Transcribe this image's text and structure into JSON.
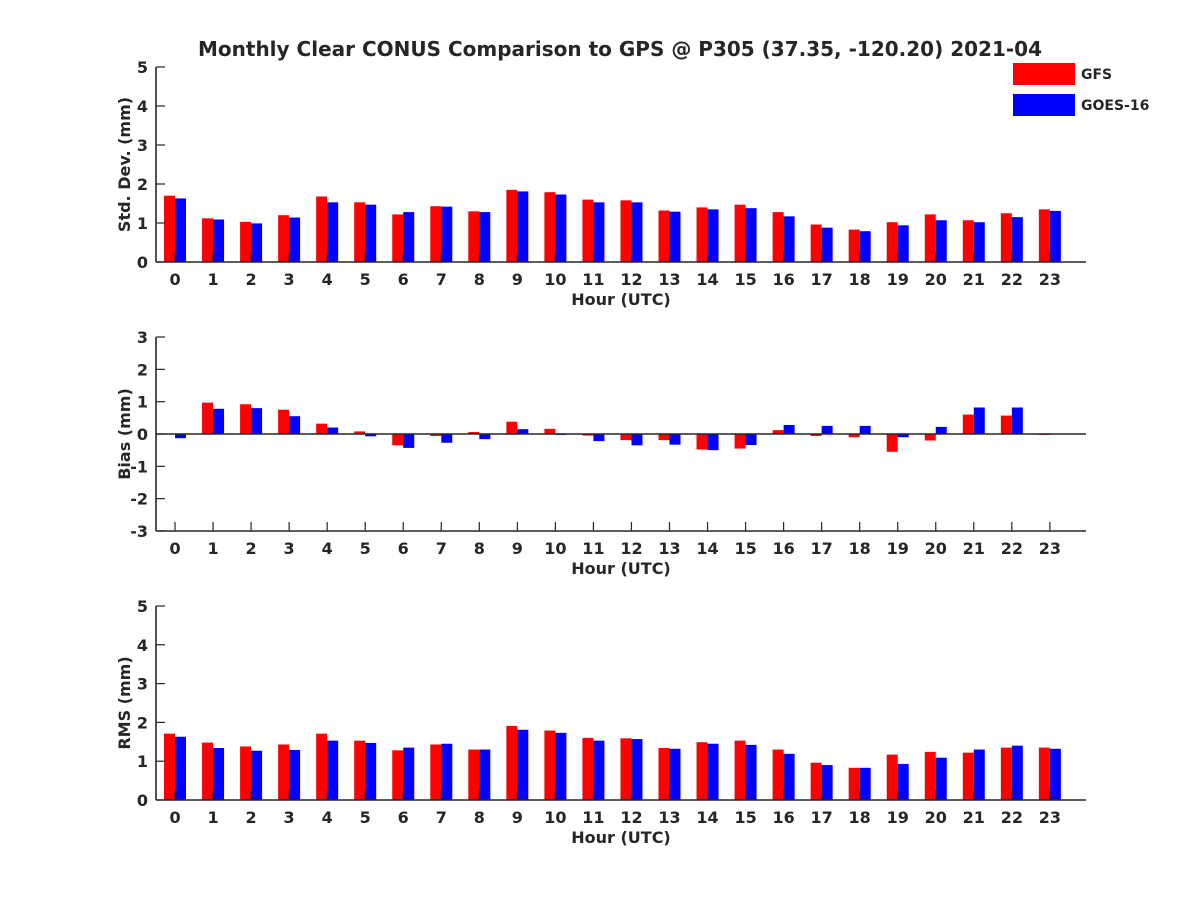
{
  "title": "Monthly Clear CONUS Comparison to GPS @ P305 (37.35, -120.20) 2021-04",
  "legend": {
    "placement": "top-right",
    "entries": [
      {
        "name": "GFS",
        "color": "#ff0000"
      },
      {
        "name": "GOES-16",
        "color": "#0000ff"
      }
    ]
  },
  "chart_data": [
    {
      "type": "bar",
      "ylabel": "Std. Dev. (mm)",
      "xlabel": "Hour (UTC)",
      "ylim": [
        0,
        5
      ],
      "yticks": [
        "0",
        "1",
        "2",
        "3",
        "4",
        "5"
      ],
      "categories": [
        "0",
        "1",
        "2",
        "3",
        "4",
        "5",
        "6",
        "7",
        "8",
        "9",
        "10",
        "11",
        "12",
        "13",
        "14",
        "15",
        "16",
        "17",
        "18",
        "19",
        "20",
        "21",
        "22",
        "23"
      ],
      "series": [
        {
          "name": "GFS",
          "color": "#ff0000",
          "values": [
            1.7,
            1.12,
            1.03,
            1.2,
            1.68,
            1.53,
            1.22,
            1.43,
            1.3,
            1.85,
            1.79,
            1.6,
            1.58,
            1.32,
            1.4,
            1.47,
            1.28,
            0.96,
            0.83,
            1.02,
            1.22,
            1.07,
            1.25,
            1.35
          ]
        },
        {
          "name": "GOES-16",
          "color": "#0000ff",
          "values": [
            1.63,
            1.09,
            0.99,
            1.14,
            1.53,
            1.47,
            1.28,
            1.42,
            1.28,
            1.81,
            1.73,
            1.53,
            1.53,
            1.29,
            1.35,
            1.38,
            1.17,
            0.88,
            0.79,
            0.94,
            1.07,
            1.02,
            1.15,
            1.31
          ]
        }
      ]
    },
    {
      "type": "bar",
      "ylabel": "Bias (mm)",
      "xlabel": "Hour (UTC)",
      "ylim": [
        -3,
        3
      ],
      "yticks": [
        "-3",
        "-2",
        "-1",
        "0",
        "1",
        "2",
        "3"
      ],
      "categories": [
        "0",
        "1",
        "2",
        "3",
        "4",
        "5",
        "6",
        "7",
        "8",
        "9",
        "10",
        "11",
        "12",
        "13",
        "14",
        "15",
        "16",
        "17",
        "18",
        "19",
        "20",
        "21",
        "22",
        "23"
      ],
      "series": [
        {
          "name": "GFS",
          "color": "#ff0000",
          "values": [
            0.01,
            0.97,
            0.92,
            0.75,
            0.32,
            0.08,
            -0.35,
            -0.06,
            0.06,
            0.38,
            0.16,
            -0.05,
            -0.19,
            -0.19,
            -0.48,
            -0.45,
            0.12,
            -0.06,
            -0.1,
            -0.55,
            -0.2,
            0.6,
            0.57,
            -0.03
          ]
        },
        {
          "name": "GOES-16",
          "color": "#0000ff",
          "values": [
            -0.13,
            0.78,
            0.8,
            0.55,
            0.2,
            -0.07,
            -0.43,
            -0.27,
            -0.16,
            0.15,
            -0.03,
            -0.22,
            -0.35,
            -0.33,
            -0.5,
            -0.34,
            0.28,
            0.25,
            0.25,
            -0.1,
            0.22,
            0.82,
            0.82,
            -0.01
          ]
        }
      ]
    },
    {
      "type": "bar",
      "ylabel": "RMS (mm)",
      "xlabel": "Hour (UTC)",
      "ylim": [
        0,
        5
      ],
      "yticks": [
        "0",
        "1",
        "2",
        "3",
        "4",
        "5"
      ],
      "categories": [
        "0",
        "1",
        "2",
        "3",
        "4",
        "5",
        "6",
        "7",
        "8",
        "9",
        "10",
        "11",
        "12",
        "13",
        "14",
        "15",
        "16",
        "17",
        "18",
        "19",
        "20",
        "21",
        "22",
        "23"
      ],
      "series": [
        {
          "name": "GFS",
          "color": "#ff0000",
          "values": [
            1.71,
            1.48,
            1.38,
            1.43,
            1.71,
            1.53,
            1.28,
            1.43,
            1.3,
            1.91,
            1.79,
            1.6,
            1.59,
            1.34,
            1.49,
            1.53,
            1.3,
            0.96,
            0.83,
            1.17,
            1.24,
            1.22,
            1.35,
            1.35
          ]
        },
        {
          "name": "GOES-16",
          "color": "#0000ff",
          "values": [
            1.63,
            1.34,
            1.27,
            1.29,
            1.53,
            1.47,
            1.35,
            1.45,
            1.3,
            1.81,
            1.73,
            1.53,
            1.57,
            1.32,
            1.45,
            1.42,
            1.19,
            0.9,
            0.83,
            0.93,
            1.09,
            1.3,
            1.4,
            1.32
          ]
        }
      ]
    }
  ]
}
